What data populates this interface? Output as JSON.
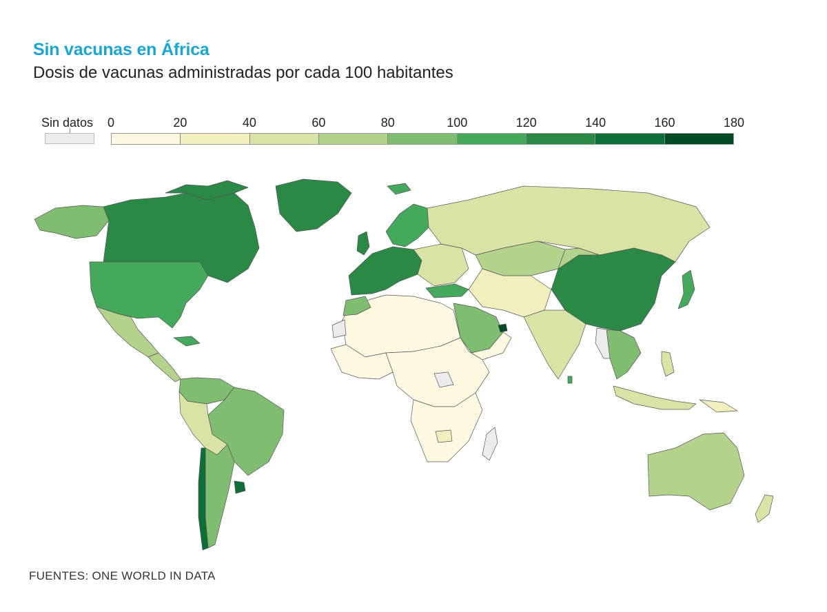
{
  "title": "Sin vacunas en África",
  "subtitle": "Dosis de vacunas administradas por cada 100 habitantes",
  "legend": {
    "no_data_label": "Sin datos",
    "no_data_color": "#ececec",
    "ticks": [
      "0",
      "20",
      "40",
      "60",
      "80",
      "100",
      "120",
      "140",
      "160",
      "180"
    ],
    "colors": [
      "#fdf9e1",
      "#f1efbd",
      "#d9e3a5",
      "#b3d38c",
      "#7fbd70",
      "#45a95b",
      "#2a8a45",
      "#0d6e38",
      "#004a25"
    ]
  },
  "source": "FUENTES: ONE WORLD IN DATA"
}
